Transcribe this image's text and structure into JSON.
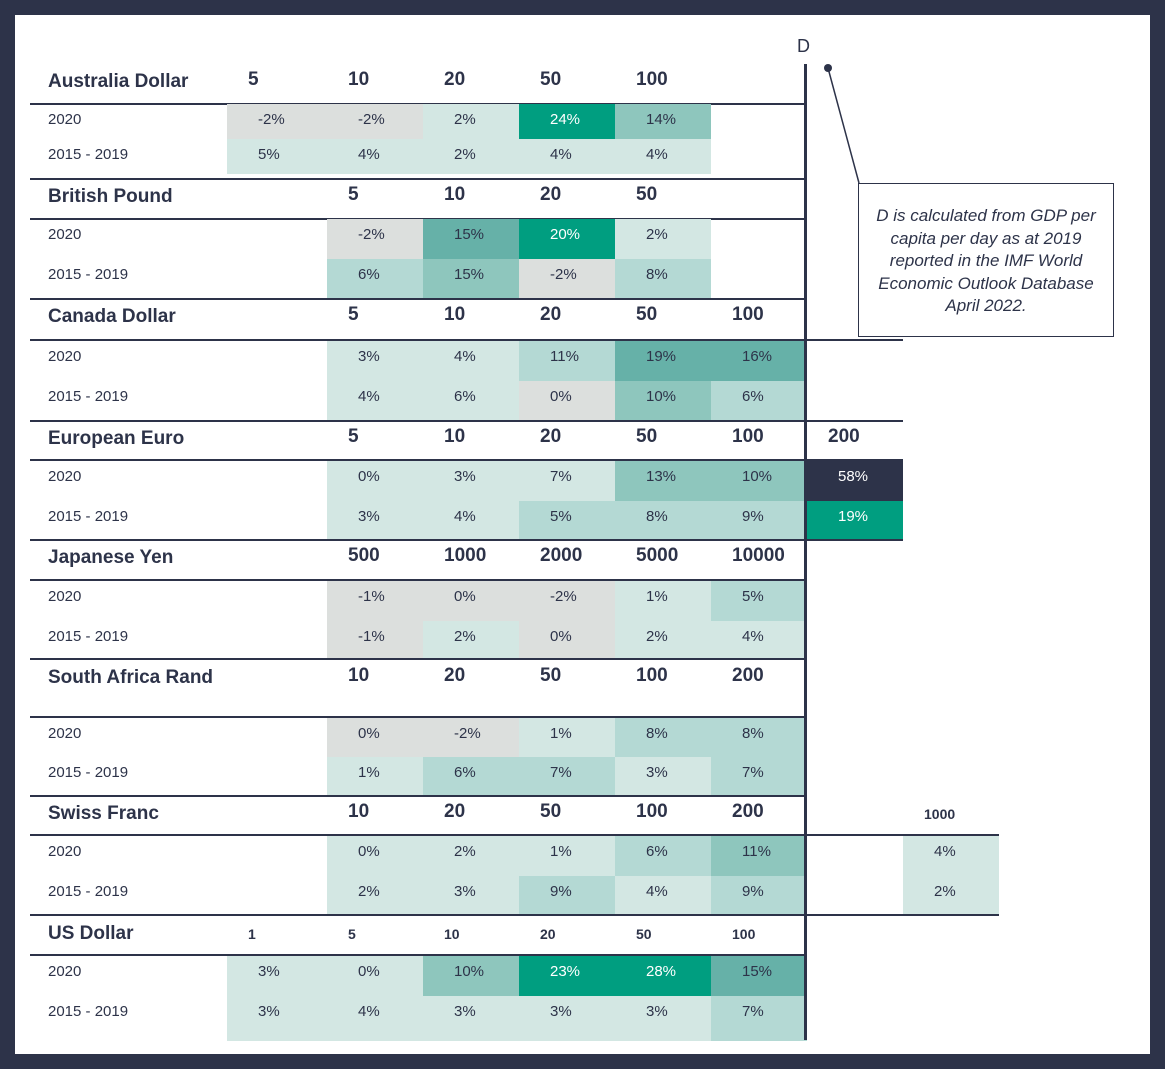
{
  "d_label": "D",
  "note": "D is calculated from GDP per capita per day as at 2019 reported in the IMF World Economic Outlook Database April 2022.",
  "colors": {
    "gray": "#dcdfdd",
    "c1": "#d3e7e3",
    "c2": "#b4d9d4",
    "c3": "#8ec6bd",
    "c4": "#66b1a8",
    "c5": "#009e80",
    "dark": "#2d3349",
    "line": "#2d3349"
  },
  "chart_data": {
    "type": "table",
    "columns_note": "",
    "groups": [
      {
        "currency": "Australia Dollar",
        "denominations": [
          {
            "label": "5",
            "col": 0
          },
          {
            "label": "10",
            "col": 1
          },
          {
            "label": "20",
            "col": 2
          },
          {
            "label": "50",
            "col": 3
          },
          {
            "label": "100",
            "col": 4
          }
        ],
        "rows": [
          {
            "label": "2020",
            "values": [
              "-2%",
              "-2%",
              "2%",
              "24%",
              "14%"
            ],
            "shades": [
              "gray",
              "gray",
              "c1",
              "c5",
              "c3"
            ]
          },
          {
            "label": "2015 - 2019",
            "values": [
              "5%",
              "4%",
              "2%",
              "4%",
              "4%"
            ],
            "shades": [
              "c1",
              "c1",
              "c1",
              "c1",
              "c1"
            ]
          }
        ]
      },
      {
        "currency": "British Pound",
        "denominations": [
          {
            "label": "5",
            "col": 1
          },
          {
            "label": "10",
            "col": 2
          },
          {
            "label": "20",
            "col": 3
          },
          {
            "label": "50",
            "col": 4
          }
        ],
        "rows": [
          {
            "label": "2020",
            "values": [
              "-2%",
              "15%",
              "20%",
              "2%"
            ],
            "shades": [
              "gray",
              "c4",
              "c5",
              "c1"
            ]
          },
          {
            "label": "2015 - 2019",
            "values": [
              "6%",
              "15%",
              "-2%",
              "8%"
            ],
            "shades": [
              "c2",
              "c3",
              "gray",
              "c2"
            ]
          }
        ]
      },
      {
        "currency": "Canada Dollar",
        "denominations": [
          {
            "label": "5",
            "col": 1
          },
          {
            "label": "10",
            "col": 2
          },
          {
            "label": "20",
            "col": 3
          },
          {
            "label": "50",
            "col": 4
          },
          {
            "label": "100",
            "col": 5
          }
        ],
        "rows": [
          {
            "label": "2020",
            "values": [
              "3%",
              "4%",
              "11%",
              "19%",
              "16%"
            ],
            "shades": [
              "c1",
              "c1",
              "c2",
              "c4",
              "c4"
            ]
          },
          {
            "label": "2015 - 2019",
            "values": [
              "4%",
              "6%",
              "0%",
              "10%",
              "6%"
            ],
            "shades": [
              "c1",
              "c1",
              "gray",
              "c3",
              "c2"
            ]
          }
        ]
      },
      {
        "currency": "European Euro",
        "denominations": [
          {
            "label": "5",
            "col": 1
          },
          {
            "label": "10",
            "col": 2
          },
          {
            "label": "20",
            "col": 3
          },
          {
            "label": "50",
            "col": 4
          },
          {
            "label": "100",
            "col": 5
          },
          {
            "label": "200",
            "col": 6
          }
        ],
        "rows": [
          {
            "label": "2020",
            "values": [
              "0%",
              "3%",
              "7%",
              "13%",
              "10%",
              "58%"
            ],
            "shades": [
              "c1",
              "c1",
              "c1",
              "c3",
              "c3",
              "dark"
            ]
          },
          {
            "label": "2015 - 2019",
            "values": [
              "3%",
              "4%",
              "5%",
              "8%",
              "9%",
              "19%"
            ],
            "shades": [
              "c1",
              "c1",
              "c2",
              "c2",
              "c2",
              "c5"
            ]
          }
        ]
      },
      {
        "currency": "Japanese Yen",
        "denominations": [
          {
            "label": "500",
            "col": 1
          },
          {
            "label": "1000",
            "col": 2
          },
          {
            "label": "2000",
            "col": 3
          },
          {
            "label": "5000",
            "col": 4
          },
          {
            "label": "10000",
            "col": 5
          }
        ],
        "rows": [
          {
            "label": "2020",
            "values": [
              "-1%",
              "0%",
              "-2%",
              "1%",
              "5%"
            ],
            "shades": [
              "gray",
              "gray",
              "gray",
              "c1",
              "c2"
            ]
          },
          {
            "label": "2015 - 2019",
            "values": [
              "-1%",
              "2%",
              "0%",
              "2%",
              "4%"
            ],
            "shades": [
              "gray",
              "c1",
              "gray",
              "c1",
              "c1"
            ]
          }
        ]
      },
      {
        "currency": "South Africa Rand",
        "denominations": [
          {
            "label": "10",
            "col": 1
          },
          {
            "label": "20",
            "col": 2
          },
          {
            "label": "50",
            "col": 3
          },
          {
            "label": "100",
            "col": 4
          },
          {
            "label": "200",
            "col": 5
          }
        ],
        "rows": [
          {
            "label": "2020",
            "values": [
              "0%",
              "-2%",
              "1%",
              "8%",
              "8%"
            ],
            "shades": [
              "gray",
              "gray",
              "c1",
              "c2",
              "c2"
            ]
          },
          {
            "label": "2015 - 2019",
            "values": [
              "1%",
              "6%",
              "7%",
              "3%",
              "7%"
            ],
            "shades": [
              "c1",
              "c2",
              "c2",
              "c1",
              "c2"
            ]
          }
        ]
      },
      {
        "currency": "Swiss Franc",
        "denominations": [
          {
            "label": "10",
            "col": 1
          },
          {
            "label": "20",
            "col": 2
          },
          {
            "label": "50",
            "col": 3
          },
          {
            "label": "100",
            "col": 4
          },
          {
            "label": "200",
            "col": 5
          },
          {
            "label": "1000",
            "col": 7
          }
        ],
        "rows": [
          {
            "label": "2020",
            "values": [
              "0%",
              "2%",
              "1%",
              "6%",
              "11%",
              "4%"
            ],
            "shades": [
              "c1",
              "c1",
              "c1",
              "c2",
              "c3",
              "c1"
            ]
          },
          {
            "label": "2015 - 2019",
            "values": [
              "2%",
              "3%",
              "9%",
              "4%",
              "9%",
              "2%"
            ],
            "shades": [
              "c1",
              "c1",
              "c2",
              "c1",
              "c2",
              "c1"
            ]
          }
        ]
      },
      {
        "currency": "US Dollar",
        "denominations": [
          {
            "label": "1",
            "col": 0
          },
          {
            "label": "5",
            "col": 1
          },
          {
            "label": "10",
            "col": 2
          },
          {
            "label": "20",
            "col": 3
          },
          {
            "label": "50",
            "col": 4
          },
          {
            "label": "100",
            "col": 5
          }
        ],
        "rows": [
          {
            "label": "2020",
            "values": [
              "3%",
              "0%",
              "10%",
              "23%",
              "28%",
              "15%"
            ],
            "shades": [
              "c1",
              "c1",
              "c3",
              "c5",
              "c5",
              "c4"
            ]
          },
          {
            "label": "2015 - 2019",
            "values": [
              "3%",
              "4%",
              "3%",
              "3%",
              "3%",
              "7%"
            ],
            "shades": [
              "c1",
              "c1",
              "c1",
              "c1",
              "c1",
              "c2"
            ]
          }
        ]
      }
    ]
  }
}
